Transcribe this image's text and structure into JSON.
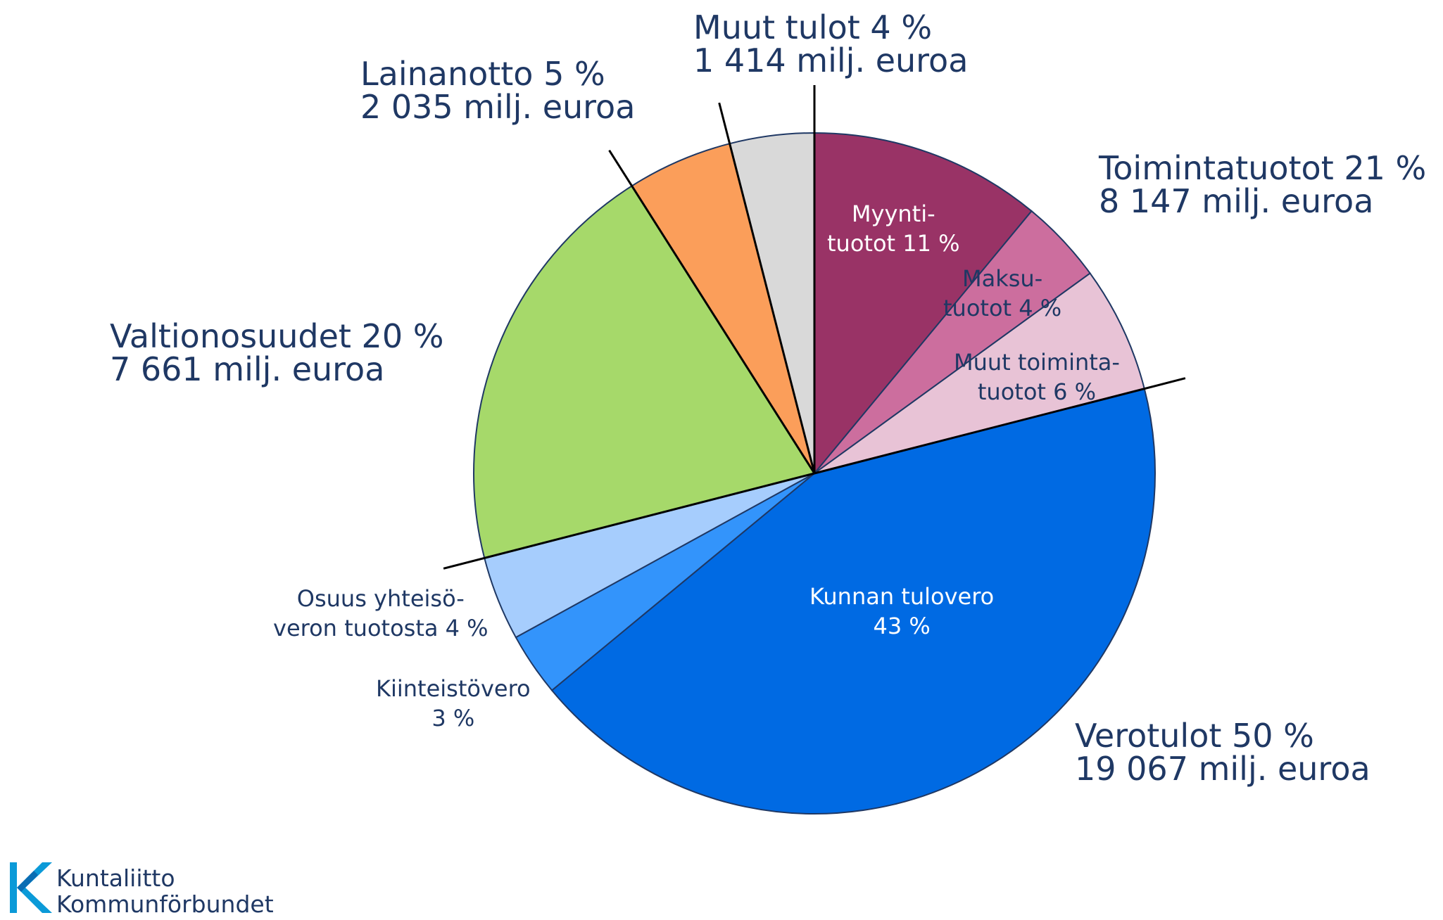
{
  "chart_data": {
    "type": "pie",
    "start": "12 o'clock",
    "direction": "clockwise",
    "slices": [
      {
        "label": "Myyntituotot",
        "value": 11,
        "color": "#993366",
        "group": "toimintatuotot"
      },
      {
        "label": "Maksutuotot",
        "value": 4,
        "color": "#cc6e9e",
        "group": "toimintatuotot"
      },
      {
        "label": "Muut toimintatuotot",
        "value": 6,
        "color": "#e8c3d6",
        "group": "toimintatuotot"
      },
      {
        "label": "Kunnan tulovero",
        "value": 43,
        "color": "#006ae3",
        "group": "verotulot"
      },
      {
        "label": "Kiinteistövero",
        "value": 3,
        "color": "#3394fb",
        "group": "verotulot"
      },
      {
        "label": "Osuus yhteisöveron tuotosta",
        "value": 4,
        "color": "#a6cdfd",
        "group": "verotulot"
      },
      {
        "label": "Valtionosuudet",
        "value": 20,
        "color": "#a6d96a",
        "group": "valtionosuudet"
      },
      {
        "label": "Lainanotto",
        "value": 5,
        "color": "#fb9e5a",
        "group": "lainanotto"
      },
      {
        "label": "Muut tulot",
        "value": 4,
        "color": "#d9d9d9",
        "group": "muut"
      }
    ],
    "groups": [
      {
        "id": "toimintatuotot",
        "percent": 21,
        "milj_euroa": 8147
      },
      {
        "id": "verotulot",
        "percent": 50,
        "milj_euroa": 19067
      },
      {
        "id": "valtionosuudet",
        "percent": 20,
        "milj_euroa": 7661
      },
      {
        "id": "lainanotto",
        "percent": 5,
        "milj_euroa": 2035
      },
      {
        "id": "muut",
        "percent": 4,
        "milj_euroa": 1414
      }
    ]
  },
  "group_labels": {
    "muut": {
      "line1": "Muut tulot 4 %",
      "line2": "1 414 milj. euroa"
    },
    "lainanotto": {
      "line1": "Lainanotto 5 %",
      "line2": "2 035 milj. euroa"
    },
    "toimintatuotot": {
      "line1": "Toimintatuotot 21 %",
      "line2": "8 147 milj. euroa"
    },
    "valtionosuudet": {
      "line1": "Valtionosuudet 20 %",
      "line2": "7 661 milj. euroa"
    },
    "verotulot": {
      "line1": "Verotulot 50 %",
      "line2": "19 067 milj. euroa"
    }
  },
  "slice_labels": {
    "myynti": {
      "line1": "Myynti-",
      "line2": "tuotot 11 %"
    },
    "maksu": {
      "line1": "Maksu-",
      "line2": "tuotot 4 %"
    },
    "muut_toiminta": {
      "line1": "Muut toiminta-",
      "line2": "tuotot 6 %"
    },
    "tulovero": {
      "line1": "Kunnan tulovero",
      "line2": "43 %"
    },
    "kiinteisto": {
      "line1": "Kiinteistövero",
      "line2": "3 %"
    },
    "yhteiso": {
      "line1": "Osuus yhteisö-",
      "line2": "veron tuotosta 4 %"
    }
  },
  "logo": {
    "line1": "Kuntaliitto",
    "line2": "Kommunförbundet",
    "color": "#0b9ad8"
  }
}
